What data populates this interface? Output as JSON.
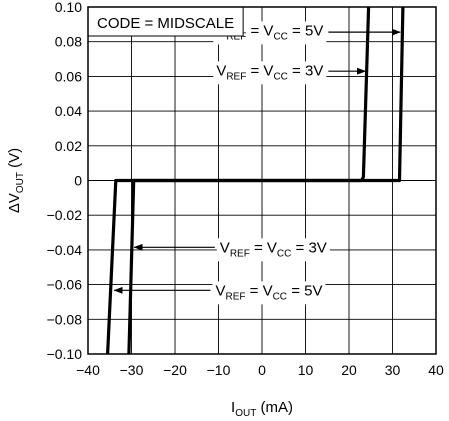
{
  "chart_data": {
    "type": "line",
    "title": "",
    "annotation_box": "CODE = MIDSCALE",
    "xlabel": {
      "main": "I",
      "sub": "OUT",
      "unit": " (mA)"
    },
    "ylabel": {
      "prefix": "ΔV",
      "sub": "OUT",
      "unit": " (V)"
    },
    "xlim": [
      -40,
      40
    ],
    "ylim": [
      -0.1,
      0.1
    ],
    "x_ticks": [
      -40,
      -30,
      -20,
      -10,
      0,
      10,
      20,
      30,
      40
    ],
    "x_tick_labels": [
      "−40",
      "−30",
      "−20",
      "−10",
      "0",
      "10",
      "20",
      "30",
      "40"
    ],
    "y_ticks": [
      0.1,
      0.08,
      0.06,
      0.04,
      0.02,
      0,
      -0.02,
      -0.04,
      -0.06,
      -0.08,
      -0.1
    ],
    "y_tick_labels": [
      "0.10",
      "0.08",
      "0.06",
      "0.04",
      "0.02",
      "0",
      "−0.02",
      "−0.04",
      "−0.06",
      "−0.08",
      "−0.10"
    ],
    "grid": true,
    "series": [
      {
        "name": "VREF = VCC = 5V",
        "label_parts": {
          "a": "V",
          "a_sub": "REF",
          "b": " = V",
          "b_sub": "CC",
          "c": " = 5V"
        },
        "points": [
          [
            -35.5,
            -0.1
          ],
          [
            -33.6,
            0
          ],
          [
            31.6,
            0
          ],
          [
            32.4,
            0.1
          ]
        ]
      },
      {
        "name": "VREF = VCC = 3V",
        "label_parts": {
          "a": "V",
          "a_sub": "REF",
          "b": " = V",
          "b_sub": "CC",
          "c": " = 3V"
        },
        "points": [
          [
            -30.6,
            -0.1
          ],
          [
            -29.5,
            0
          ],
          [
            22.9,
            0
          ],
          [
            23.3,
            0.002
          ],
          [
            24.5,
            0.1
          ]
        ]
      }
    ],
    "annotations": [
      {
        "series": 0,
        "label_at": [
          -10.5,
          0.0865
        ],
        "arrow_to": [
          31.8,
          0.0855
        ]
      },
      {
        "series": 1,
        "label_at": [
          -10.5,
          0.0635
        ],
        "arrow_to": [
          23.8,
          0.063
        ]
      },
      {
        "series": 1,
        "label_at": [
          -9.7,
          -0.0385
        ],
        "arrow_to": [
          -29.4,
          -0.0385
        ]
      },
      {
        "series": 0,
        "label_at": [
          -10.7,
          -0.0633
        ],
        "arrow_to": [
          -34.0,
          -0.0633
        ]
      }
    ]
  }
}
